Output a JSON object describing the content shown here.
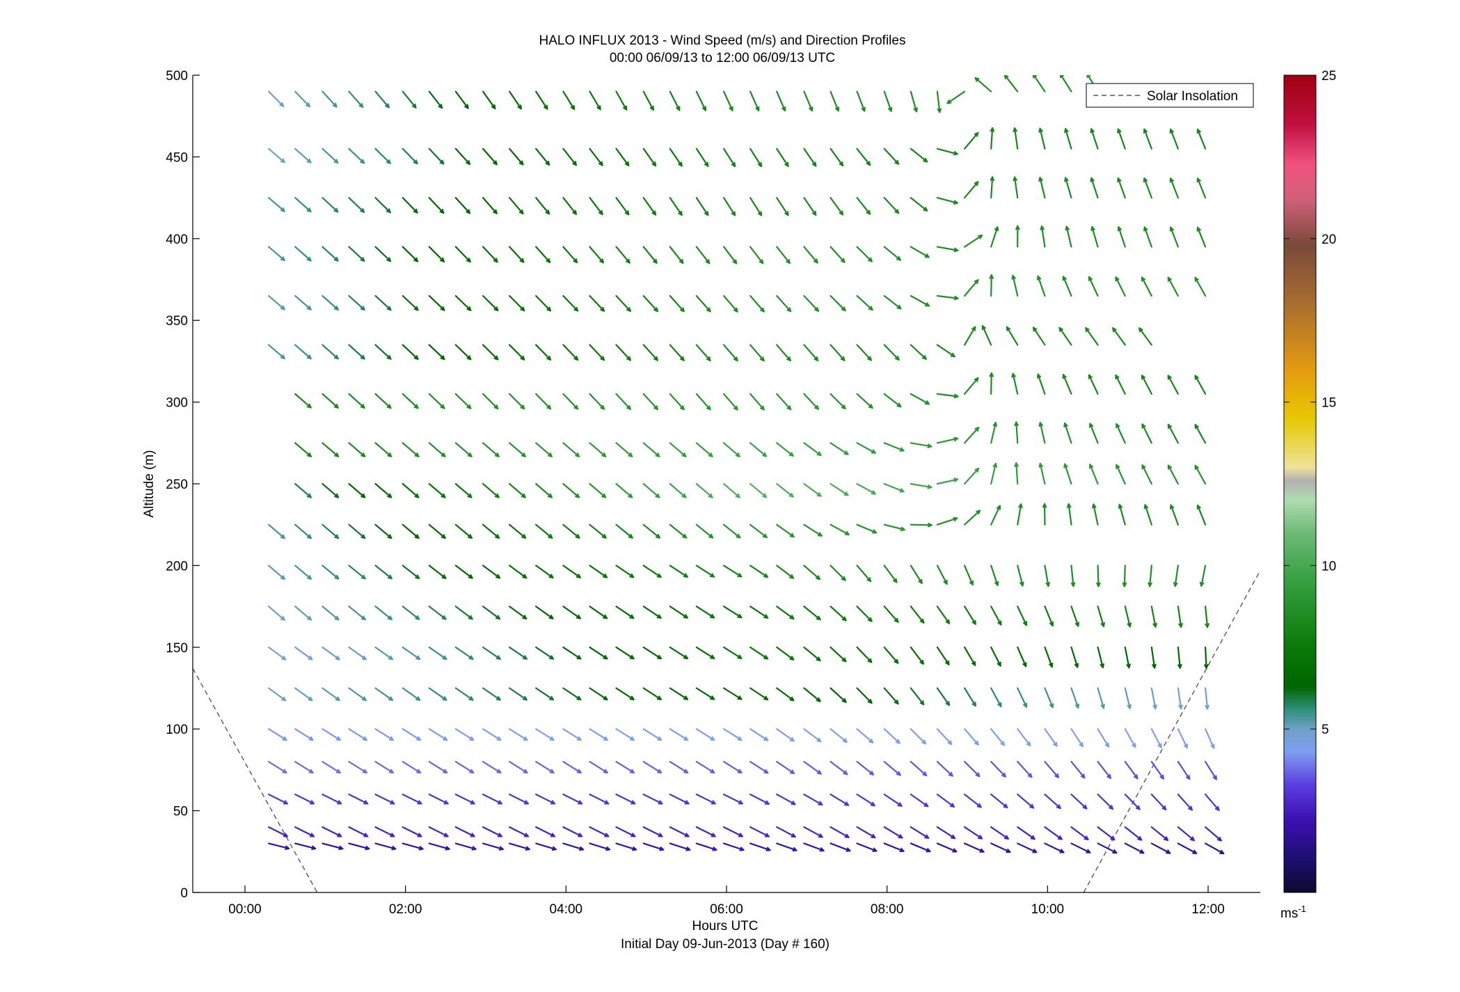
{
  "chart_data": {
    "type": "quiver",
    "title": "HALO INFLUX 2013 - Wind Speed (m/s) and Direction Profiles",
    "subtitle": "00:00 06/09/13 to 12:00 06/09/13  UTC",
    "xlabel": "Hours UTC",
    "xlabel2": "Initial Day 09-Jun-2013 (Day # 160)",
    "ylabel": "Altitude (m)",
    "xlim_hours": [
      -0.65,
      12.65
    ],
    "ylim": [
      0,
      500
    ],
    "x_ticks": [
      {
        "value": 0,
        "label": "00:00"
      },
      {
        "value": 2,
        "label": "02:00"
      },
      {
        "value": 4,
        "label": "04:00"
      },
      {
        "value": 6,
        "label": "06:00"
      },
      {
        "value": 8,
        "label": "08:00"
      },
      {
        "value": 10,
        "label": "10:00"
      },
      {
        "value": 12,
        "label": "12:00"
      }
    ],
    "y_ticks": [
      {
        "value": 0,
        "label": "0"
      },
      {
        "value": 50,
        "label": "50"
      },
      {
        "value": 100,
        "label": "100"
      },
      {
        "value": 150,
        "label": "150"
      },
      {
        "value": 200,
        "label": "200"
      },
      {
        "value": 250,
        "label": "250"
      },
      {
        "value": 300,
        "label": "300"
      },
      {
        "value": 350,
        "label": "350"
      },
      {
        "value": 400,
        "label": "400"
      },
      {
        "value": 450,
        "label": "450"
      },
      {
        "value": 500,
        "label": "500"
      }
    ],
    "legend": {
      "position": "top-right",
      "entries": [
        {
          "label": "Solar Insolation",
          "style": "dashed",
          "color": "#555555"
        }
      ]
    },
    "colorbar": {
      "range": [
        0,
        25
      ],
      "ticks": [
        {
          "value": 5,
          "label": "5"
        },
        {
          "value": 10,
          "label": "10"
        },
        {
          "value": 15,
          "label": "15"
        },
        {
          "value": 20,
          "label": "20"
        },
        {
          "value": 25,
          "label": "25"
        }
      ],
      "unit_base": "ms",
      "unit_exp": "-1",
      "stops": [
        {
          "v": 0,
          "color": "#0b0b2e"
        },
        {
          "v": 1,
          "color": "#1c0f6e"
        },
        {
          "v": 2.2,
          "color": "#3a10b0"
        },
        {
          "v": 3.3,
          "color": "#5a3ee0"
        },
        {
          "v": 4.3,
          "color": "#7f9ef0"
        },
        {
          "v": 5,
          "color": "#6ea0c8"
        },
        {
          "v": 5.6,
          "color": "#2e8f7a"
        },
        {
          "v": 6.3,
          "color": "#006400"
        },
        {
          "v": 7.5,
          "color": "#087a08"
        },
        {
          "v": 9.5,
          "color": "#34a040"
        },
        {
          "v": 11,
          "color": "#6cba76"
        },
        {
          "v": 12,
          "color": "#b0dcb0"
        },
        {
          "v": 12.6,
          "color": "#b0b0b0"
        },
        {
          "v": 13,
          "color": "#efe39a"
        },
        {
          "v": 14.5,
          "color": "#e6c800"
        },
        {
          "v": 16,
          "color": "#e49a10"
        },
        {
          "v": 18,
          "color": "#a86e2e"
        },
        {
          "v": 19.8,
          "color": "#7a4a3a"
        },
        {
          "v": 21.2,
          "color": "#d0607a"
        },
        {
          "v": 22.3,
          "color": "#f0507e"
        },
        {
          "v": 23.5,
          "color": "#c01040"
        },
        {
          "v": 25,
          "color": "#a00010"
        }
      ]
    },
    "solar_insolation": [
      {
        "x": -0.65,
        "y": 137
      },
      {
        "x": 0.9,
        "y": 0
      },
      {
        "x": 10.45,
        "y": 0
      },
      {
        "x": 12.65,
        "y": 197
      }
    ],
    "altitudes": [
      30,
      40,
      60,
      80,
      100,
      125,
      150,
      175,
      200,
      225,
      250,
      275,
      305,
      335,
      365,
      395,
      425,
      455,
      490
    ],
    "times": [
      0.4,
      0.73,
      1.07,
      1.4,
      1.73,
      2.07,
      2.4,
      2.73,
      3.07,
      3.4,
      3.73,
      4.07,
      4.4,
      4.73,
      5.07,
      5.4,
      5.73,
      6.07,
      6.4,
      6.73,
      7.07,
      7.4,
      7.73,
      8.07,
      8.4,
      8.73,
      9.07,
      9.4,
      9.73,
      10.07,
      10.4,
      10.73,
      11.07,
      11.4,
      11.73,
      12.07
    ],
    "arrow_rows": [
      {
        "alt": 30,
        "from": 0.4,
        "to": 12.07,
        "u": [
          0.8,
          0.9,
          0.9
        ],
        "v": [
          -0.2,
          -0.3,
          -0.5
        ],
        "s": [
          2.0,
          2.2,
          1.8
        ]
      },
      {
        "alt": 40,
        "from": 0.4,
        "to": 12.07,
        "u": [
          0.8,
          0.8,
          0.7
        ],
        "v": [
          -0.4,
          -0.4,
          -0.6
        ],
        "s": [
          2.6,
          2.6,
          2.6
        ]
      },
      {
        "alt": 60,
        "from": 0.4,
        "to": 12.07,
        "u": [
          0.8,
          0.8,
          0.6
        ],
        "v": [
          -0.4,
          -0.4,
          -0.7
        ],
        "s": [
          3.0,
          3.0,
          3.0
        ]
      },
      {
        "alt": 80,
        "from": 0.4,
        "to": 12.07,
        "u": [
          0.8,
          0.8,
          0.5
        ],
        "v": [
          -0.5,
          -0.5,
          -0.8
        ],
        "s": [
          3.8,
          3.6,
          3.4
        ]
      },
      {
        "alt": 100,
        "from": 0.4,
        "to": 12.07,
        "u": [
          0.8,
          0.8,
          0.4
        ],
        "v": [
          -0.5,
          -0.5,
          -0.9
        ],
        "s": [
          4.2,
          4.4,
          4.4
        ]
      },
      {
        "alt": 125,
        "from": 0.4,
        "to": 12.07,
        "u": [
          0.75,
          0.8,
          0.1
        ],
        "v": [
          -0.55,
          -0.5,
          -1.0
        ],
        "s": [
          5.0,
          6.8,
          4.8
        ]
      },
      {
        "alt": 150,
        "from": 0.4,
        "to": 12.07,
        "u": [
          0.75,
          0.8,
          0.05
        ],
        "v": [
          -0.55,
          -0.5,
          -1.0
        ],
        "s": [
          4.6,
          7.2,
          6.4
        ]
      },
      {
        "alt": 175,
        "from": 0.4,
        "to": 12.07,
        "u": [
          0.7,
          0.8,
          0.1
        ],
        "v": [
          -0.6,
          -0.5,
          -1.0
        ],
        "s": [
          5.0,
          7.4,
          8.0
        ]
      },
      {
        "alt": 200,
        "from": 0.4,
        "to": 12.07,
        "u": [
          0.7,
          0.8,
          -0.2
        ],
        "v": [
          -0.6,
          -0.5,
          -1.0
        ],
        "s": [
          5.2,
          8.2,
          8.6
        ]
      },
      {
        "alt": 225,
        "from": 0.4,
        "to": 12.07,
        "u": [
          0.7,
          0.75,
          -0.4
        ],
        "v": [
          -0.6,
          -0.6,
          1.0
        ],
        "s": [
          5.4,
          9.0,
          8.2
        ]
      },
      {
        "alt": 250,
        "from": 0.73,
        "to": 12.07,
        "u": [
          0.7,
          0.7,
          -0.5
        ],
        "v": [
          -0.6,
          -0.6,
          0.9
        ],
        "s": [
          5.6,
          10.4,
          8.6
        ]
      },
      {
        "alt": 275,
        "from": 0.73,
        "to": 12.07,
        "u": [
          0.7,
          0.7,
          -0.5
        ],
        "v": [
          -0.6,
          -0.6,
          0.9
        ],
        "s": [
          8.0,
          9.6,
          8.2
        ]
      },
      {
        "alt": 305,
        "from": 0.73,
        "to": 12.07,
        "u": [
          0.7,
          0.6,
          -0.5
        ],
        "v": [
          -0.6,
          -0.7,
          0.9
        ],
        "s": [
          8.2,
          9.0,
          8.0
        ]
      },
      {
        "alt": 335,
        "from": 0.4,
        "to": 11.4,
        "u": [
          0.7,
          0.6,
          -0.6
        ],
        "v": [
          -0.6,
          -0.7,
          0.8
        ],
        "s": [
          5.4,
          8.4,
          8.2
        ]
      },
      {
        "alt": 365,
        "from": 0.4,
        "to": 12.07,
        "u": [
          0.7,
          0.6,
          -0.5
        ],
        "v": [
          -0.6,
          -0.7,
          0.9
        ],
        "s": [
          5.2,
          8.6,
          8.6
        ]
      },
      {
        "alt": 395,
        "from": 0.4,
        "to": 12.07,
        "u": [
          0.7,
          0.6,
          -0.4
        ],
        "v": [
          -0.6,
          -0.8,
          1.0
        ],
        "s": [
          5.4,
          8.6,
          8.4
        ]
      },
      {
        "alt": 425,
        "from": 0.4,
        "to": 12.07,
        "u": [
          0.7,
          0.5,
          -0.4
        ],
        "v": [
          -0.6,
          -0.8,
          1.0
        ],
        "s": [
          5.4,
          8.2,
          8.4
        ]
      },
      {
        "alt": 455,
        "from": 0.4,
        "to": 12.07,
        "u": [
          0.7,
          0.5,
          -0.4
        ],
        "v": [
          -0.6,
          -0.8,
          1.0
        ],
        "s": [
          5.0,
          8.0,
          8.2
        ]
      },
      {
        "alt": 490,
        "from": 0.4,
        "to": 10.73,
        "u": [
          0.7,
          0.4,
          -0.5
        ],
        "v": [
          -0.7,
          -0.9,
          0.9
        ],
        "s": [
          5.0,
          8.4,
          8.6
        ]
      }
    ]
  }
}
